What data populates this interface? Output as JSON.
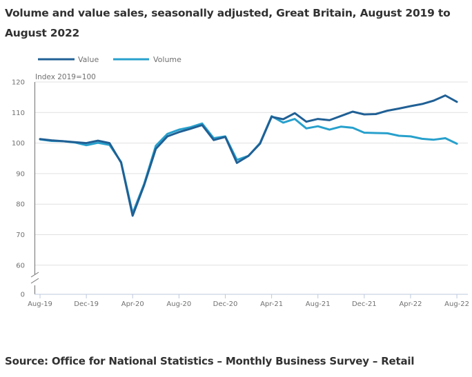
{
  "title": "Volume and value sales, seasonally adjusted, Great Britain, August 2019 to August 2022",
  "source": "Source: Office for National Statistics – Monthly Business Survey – Retail",
  "colors": {
    "value": "#206095",
    "volume": "#27a0cc",
    "grid": "#e0e0e0",
    "axis": "#707071",
    "x_axis": "#bcc8dc"
  },
  "chart_data": {
    "type": "line",
    "title": "Volume and value sales, seasonally adjusted, Great Britain, August 2019 to August 2022",
    "ylabel": "Index 2019=100",
    "xlabel": "",
    "ylim": [
      0,
      120
    ],
    "y_axis_break": true,
    "y_ticks": [
      0,
      60,
      70,
      80,
      90,
      100,
      110,
      120
    ],
    "grid": true,
    "legend_position": "top-left",
    "x": [
      "Aug-19",
      "Sep-19",
      "Oct-19",
      "Nov-19",
      "Dec-19",
      "Jan-20",
      "Feb-20",
      "Mar-20",
      "Apr-20",
      "May-20",
      "Jun-20",
      "Jul-20",
      "Aug-20",
      "Sep-20",
      "Oct-20",
      "Nov-20",
      "Dec-20",
      "Jan-21",
      "Feb-21",
      "Mar-21",
      "Apr-21",
      "May-21",
      "Jun-21",
      "Jul-21",
      "Aug-21",
      "Sep-21",
      "Oct-21",
      "Nov-21",
      "Dec-21",
      "Jan-22",
      "Feb-22",
      "Mar-22",
      "Apr-22",
      "May-22",
      "Jun-22",
      "Jul-22",
      "Aug-22"
    ],
    "x_tick_labels": [
      "Aug-19",
      "Dec-19",
      "Apr-20",
      "Aug-20",
      "Dec-20",
      "Apr-21",
      "Aug-21",
      "Dec-21",
      "Apr-22",
      "Aug-22"
    ],
    "series": [
      {
        "name": "Value",
        "values": [
          101.3,
          100.9,
          100.6,
          100.3,
          100.0,
          100.8,
          100.0,
          93.6,
          76.2,
          86.3,
          98.1,
          102.2,
          103.6,
          104.7,
          105.9,
          101.0,
          102.0,
          93.5,
          95.8,
          99.8,
          108.6,
          107.8,
          109.8,
          107.0,
          107.9,
          107.5,
          108.9,
          110.3,
          109.4,
          109.5,
          110.6,
          111.3,
          112.1,
          112.8,
          113.9,
          115.6,
          113.5
        ]
      },
      {
        "name": "Volume",
        "values": [
          101.2,
          100.7,
          100.6,
          100.2,
          99.3,
          100.1,
          99.4,
          93.8,
          77.0,
          86.7,
          99.1,
          103.0,
          104.4,
          105.2,
          106.4,
          101.6,
          102.2,
          94.5,
          95.8,
          100.0,
          108.8,
          106.7,
          107.9,
          104.8,
          105.5,
          104.4,
          105.4,
          105.0,
          103.4,
          103.3,
          103.2,
          102.4,
          102.2,
          101.4,
          101.1,
          101.6,
          99.8
        ]
      }
    ]
  }
}
